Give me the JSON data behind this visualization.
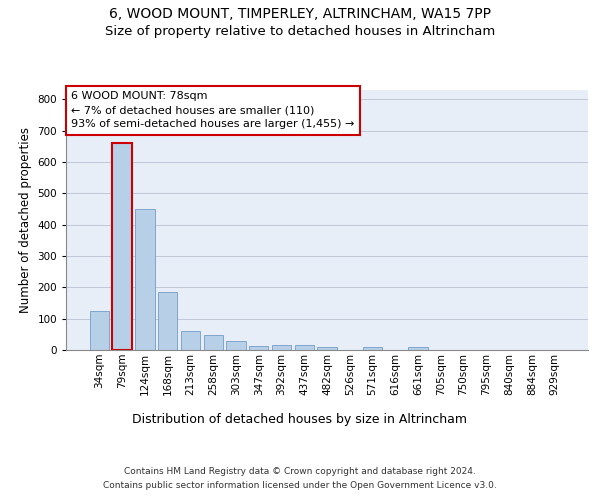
{
  "title1": "6, WOOD MOUNT, TIMPERLEY, ALTRINCHAM, WA15 7PP",
  "title2": "Size of property relative to detached houses in Altrincham",
  "xlabel": "Distribution of detached houses by size in Altrincham",
  "ylabel": "Number of detached properties",
  "categories": [
    "34sqm",
    "79sqm",
    "124sqm",
    "168sqm",
    "213sqm",
    "258sqm",
    "303sqm",
    "347sqm",
    "392sqm",
    "437sqm",
    "482sqm",
    "526sqm",
    "571sqm",
    "616sqm",
    "661sqm",
    "705sqm",
    "750sqm",
    "795sqm",
    "840sqm",
    "884sqm",
    "929sqm"
  ],
  "values": [
    125,
    660,
    450,
    185,
    62,
    47,
    28,
    13,
    15,
    15,
    8,
    0,
    8,
    0,
    8,
    0,
    0,
    0,
    0,
    0,
    0
  ],
  "bar_color": "#b8cfe8",
  "bar_edge_color": "#6090c0",
  "highlight_bar_index": 1,
  "highlight_bar_edge_color": "#cc0000",
  "annotation_box_text": "6 WOOD MOUNT: 78sqm\n← 7% of detached houses are smaller (110)\n93% of semi-detached houses are larger (1,455) →",
  "ylim": [
    0,
    830
  ],
  "yticks": [
    0,
    100,
    200,
    300,
    400,
    500,
    600,
    700,
    800
  ],
  "footer1": "Contains HM Land Registry data © Crown copyright and database right 2024.",
  "footer2": "Contains public sector information licensed under the Open Government Licence v3.0.",
  "background_color": "#e8eef8",
  "grid_color": "#b0b8cc",
  "title1_fontsize": 10,
  "title2_fontsize": 9.5,
  "xlabel_fontsize": 9,
  "ylabel_fontsize": 8.5,
  "tick_fontsize": 7.5,
  "annotation_fontsize": 8,
  "footer_fontsize": 6.5
}
